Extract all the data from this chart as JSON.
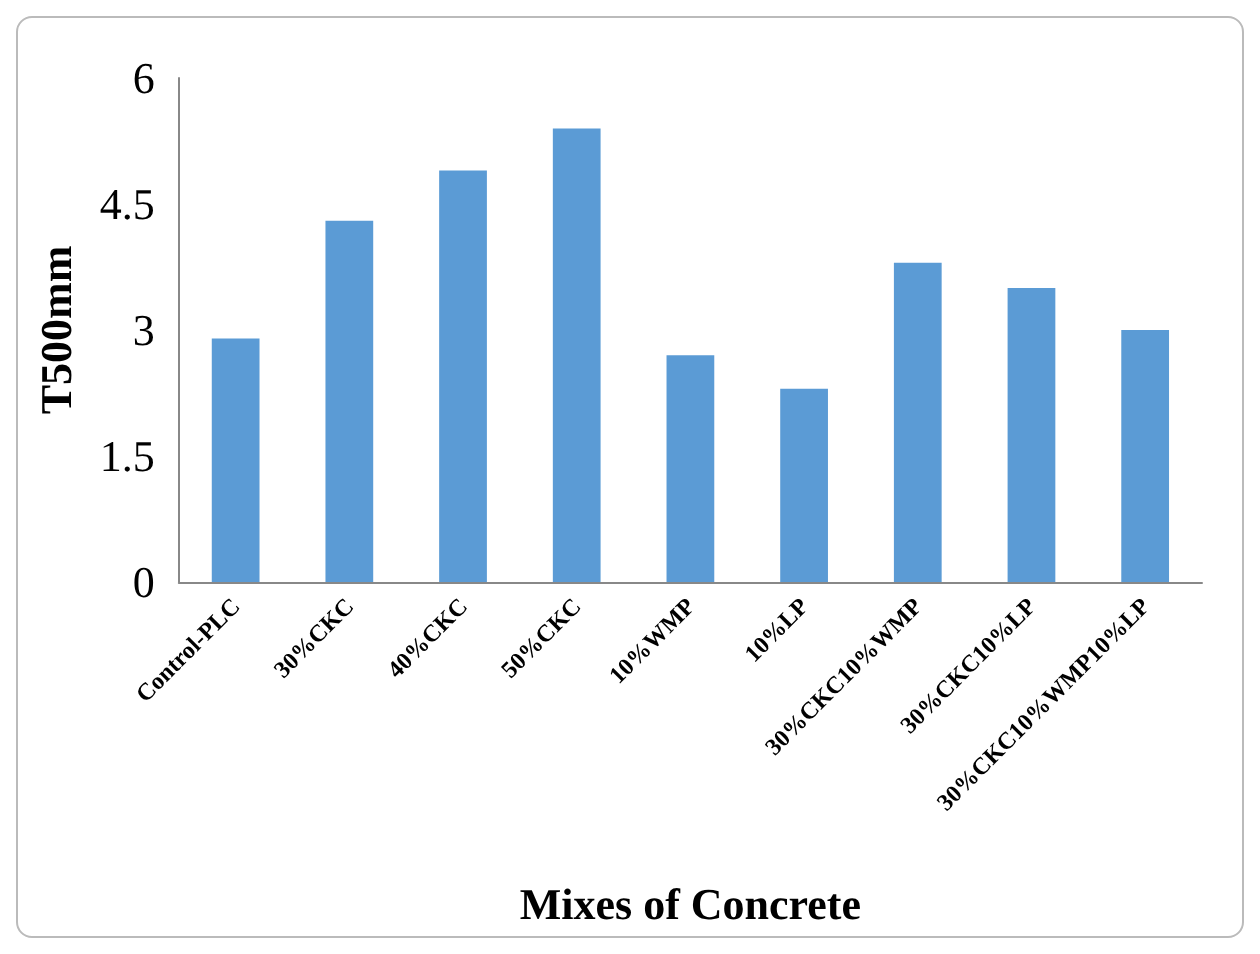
{
  "chart_data": {
    "type": "bar",
    "xlabel": "Mixes of Concrete",
    "ylabel": "T500mm",
    "categories": [
      "Control-PLC",
      "30%CKC",
      "40%CKC",
      "50%CKC",
      "10%WMP",
      "10%LP",
      "30%CKC10%WMP",
      "30%CKC10%LP",
      "30%CKC10%WMP10%LP"
    ],
    "values": [
      2.9,
      4.3,
      4.9,
      5.4,
      2.7,
      2.3,
      3.8,
      3.5,
      3.0
    ],
    "color": "#5b9bd5",
    "ylim": [
      0,
      6
    ],
    "yticks": [
      0,
      1.5,
      3,
      4.5,
      6
    ],
    "grid": false
  }
}
